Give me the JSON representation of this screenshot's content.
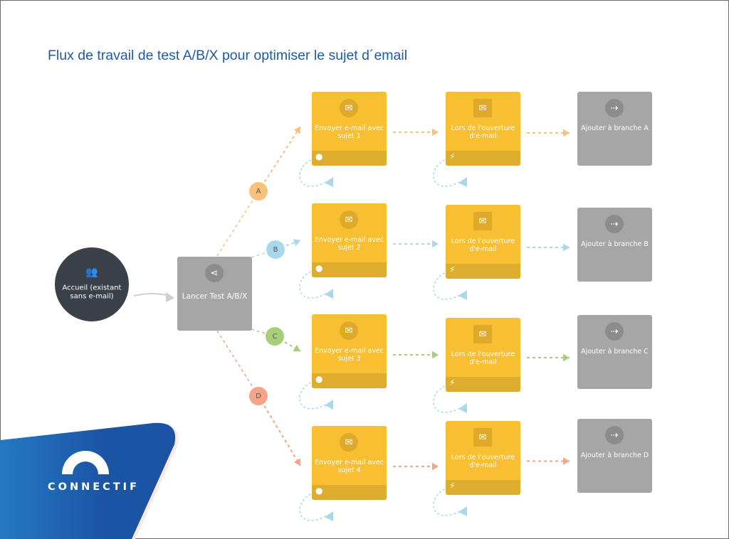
{
  "title": "Flux de travail de test A/B/X pour optimiser le sujet d´email",
  "start": {
    "label": "Accueil (existant sans e-mail)",
    "icon": "add-user-icon"
  },
  "split": {
    "label": "Lancer Test A/B/X",
    "icon": "share-split-icon"
  },
  "branches": [
    {
      "badge": "A",
      "color": "#f9c27a",
      "send_label": "Envoyer e-mail avec sujet 1",
      "open_label": "Lors de l'ouverture d'e-mail",
      "add_label": "Ajouter à branche A"
    },
    {
      "badge": "B",
      "color": "#a9d8ea",
      "send_label": "Envoyer e-mail avec sujet 2",
      "open_label": "Lors de l'ouverture d'e-mail",
      "add_label": "Ajouter à branche B"
    },
    {
      "badge": "C",
      "color": "#a6cf79",
      "send_label": "Envoyer e-mail avec sujet 3",
      "open_label": "Lors de l'ouverture d'e-mail",
      "add_label": "Ajouter à branche C"
    },
    {
      "badge": "D",
      "color": "#f5a48a",
      "send_label": "Envoyer e-mail avec sujet 4",
      "open_label": "Lors de l'ouverture d'e-mail",
      "add_label": "Ajouter à branche D"
    }
  ],
  "icons": {
    "send": "envelope-icon",
    "open": "open-envelope-icon",
    "add": "branch-add-icon",
    "send_footer": "user-icon",
    "open_footer": "flash-off-icon"
  },
  "loop_color": "#a9d8ea",
  "logo": {
    "text": "CONNECTIF",
    "brand_color": "#1f5aa6"
  }
}
